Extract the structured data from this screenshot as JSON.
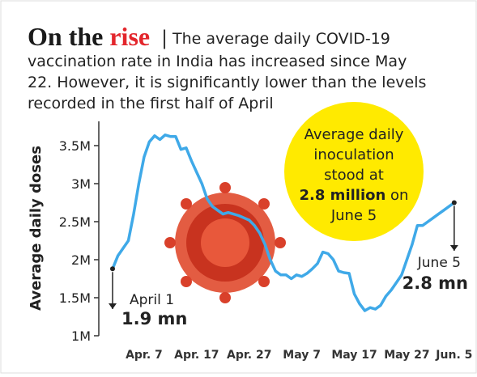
{
  "chart_data": {
    "type": "line",
    "title": "On the",
    "title_highlight": "rise",
    "separator": "|",
    "subtitle_lines": [
      "The average daily COVID-19",
      "vaccination rate in India has increased since May",
      "22. However, it is significantly lower than the levels",
      "recorded in the first half of April"
    ],
    "ylabel": "Average daily doses",
    "categories": [
      null,
      null,
      null,
      null,
      null,
      null,
      "Apr. 7",
      null,
      null,
      null,
      null,
      null,
      null,
      null,
      null,
      null,
      "Apr. 17",
      null,
      null,
      null,
      null,
      null,
      null,
      null,
      null,
      null,
      "Apr. 27",
      null,
      null,
      null,
      null,
      null,
      null,
      null,
      null,
      null,
      "May 7",
      null,
      null,
      null,
      null,
      null,
      null,
      null,
      null,
      null,
      "May 17",
      null,
      null,
      null,
      null,
      null,
      null,
      null,
      null,
      null,
      "May 27",
      null,
      null,
      null,
      null,
      null,
      null,
      null,
      null,
      "Jun. 5"
    ],
    "series": [
      {
        "name": "Average daily doses",
        "color": "#3fa9e8",
        "values": [
          1.88,
          2.05,
          2.15,
          2.25,
          2.6,
          3.0,
          3.35,
          3.55,
          3.63,
          3.58,
          3.64,
          3.62,
          3.62,
          3.45,
          3.47,
          3.3,
          3.15,
          3.0,
          2.8,
          2.7,
          2.65,
          2.6,
          2.62,
          2.6,
          2.58,
          2.55,
          2.52,
          2.45,
          2.35,
          2.2,
          2.0,
          1.85,
          1.8,
          1.8,
          1.75,
          1.8,
          1.78,
          1.82,
          1.88,
          1.95,
          2.1,
          2.08,
          2.0,
          1.85,
          1.83,
          1.82,
          1.55,
          1.42,
          1.33,
          1.37,
          1.35,
          1.4,
          1.52,
          1.6,
          1.7,
          1.8,
          2.0,
          2.2,
          2.45,
          2.45,
          2.5,
          2.55,
          2.6,
          2.65,
          2.7,
          2.75
        ]
      }
    ],
    "ylim": [
      1,
      3.8
    ],
    "yticks": [
      {
        "value": 1,
        "label": "1M"
      },
      {
        "value": 1.5,
        "label": "1.5M"
      },
      {
        "value": 2,
        "label": "2M"
      },
      {
        "value": 2.5,
        "label": "2.5M"
      },
      {
        "value": 3,
        "label": "3M"
      },
      {
        "value": 3.5,
        "label": "3.5M"
      }
    ],
    "annotations": {
      "start_date": "April 1",
      "start_value": "1.9 mn",
      "end_date": "June 5",
      "end_value": "2.8 mn"
    },
    "callout": {
      "lines": [
        "Average daily",
        "inoculation",
        "stood at"
      ],
      "bold": "2.8 million",
      "after_bold": "on",
      "last": "June 5",
      "color": "#ffea00"
    }
  }
}
